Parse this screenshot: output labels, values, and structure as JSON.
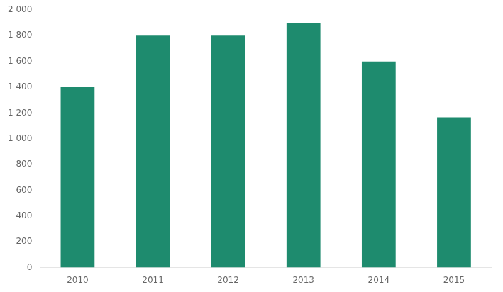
{
  "chart_data": {
    "type": "bar",
    "categories": [
      "2010",
      "2011",
      "2012",
      "2013",
      "2014",
      "2015"
    ],
    "values": [
      1400,
      1800,
      1800,
      1900,
      1600,
      1167
    ],
    "color": "#1e8b6e",
    "ylim": [
      0,
      2000
    ],
    "yticks": [
      0,
      200,
      400,
      600,
      800,
      {
        "value": 1000,
        "label": "1 000"
      },
      {
        "value": 1200,
        "label": "1 200"
      },
      {
        "value": 1400,
        "label": "1 400"
      },
      {
        "value": 1600,
        "label": "1 600"
      },
      {
        "value": 1800,
        "label": "1 800"
      },
      {
        "value": 2000,
        "label": "2 000"
      }
    ],
    "grid": false
  }
}
